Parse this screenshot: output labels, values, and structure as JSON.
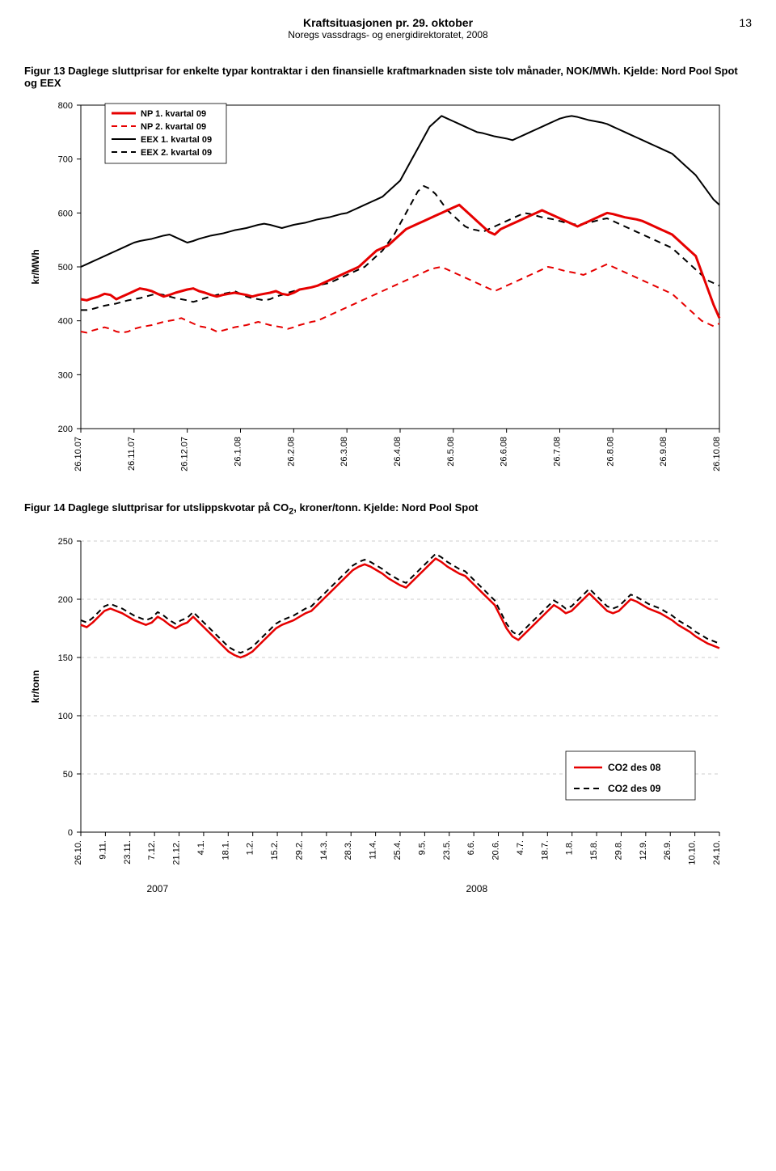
{
  "header": {
    "title": "Kraftsituasjonen pr. 29. oktober",
    "subtitle": "Noregs vassdrags- og energidirektoratet, 2008",
    "page_number": "13"
  },
  "figure13": {
    "caption": "Figur 13 Daglege sluttprisar for enkelte typar kontraktar i den finansielle kraftmarknaden siste tolv månader, NOK/MWh. Kjelde: Nord Pool Spot og EEX",
    "type": "line",
    "ylabel": "kr/MWh",
    "ylim": [
      200,
      800
    ],
    "ytick_step": 100,
    "x_labels": [
      "26.10.07",
      "26.11.07",
      "26.12.07",
      "26.1.08",
      "26.2.08",
      "26.3.08",
      "26.4.08",
      "26.5.08",
      "26.6.08",
      "26.7.08",
      "26.8.08",
      "26.9.08",
      "26.10.08"
    ],
    "legend": {
      "items": [
        {
          "label": "NP 1. kvartal 09",
          "color": "#e60000",
          "dash": false,
          "width": 3
        },
        {
          "label": "NP 2. kvartal 09",
          "color": "#e60000",
          "dash": true,
          "width": 2
        },
        {
          "label": "EEX 1. kvartal 09",
          "color": "#000000",
          "dash": false,
          "width": 2
        },
        {
          "label": "EEX 2. kvartal 09",
          "color": "#000000",
          "dash": true,
          "width": 2
        }
      ]
    },
    "series": {
      "np1": {
        "color": "#e60000",
        "dash": false,
        "width": 3.2,
        "y": [
          440,
          438,
          442,
          445,
          450,
          448,
          440,
          445,
          450,
          455,
          460,
          458,
          455,
          450,
          445,
          448,
          452,
          455,
          458,
          460,
          455,
          452,
          448,
          445,
          448,
          450,
          452,
          450,
          448,
          445,
          448,
          450,
          452,
          455,
          450,
          448,
          452,
          458,
          460,
          462,
          465,
          470,
          475,
          480,
          485,
          490,
          495,
          500,
          510,
          520,
          530,
          535,
          540,
          550,
          560,
          570,
          575,
          580,
          585,
          590,
          595,
          600,
          605,
          610,
          615,
          605,
          595,
          585,
          575,
          565,
          560,
          570,
          575,
          580,
          585,
          590,
          595,
          600,
          605,
          600,
          595,
          590,
          585,
          580,
          575,
          580,
          585,
          590,
          595,
          600,
          598,
          595,
          592,
          590,
          588,
          585,
          580,
          575,
          570,
          565,
          560,
          550,
          540,
          530,
          520,
          490,
          460,
          430,
          405
        ]
      },
      "np2": {
        "color": "#e60000",
        "dash": true,
        "width": 2,
        "y": [
          380,
          378,
          382,
          385,
          388,
          385,
          380,
          378,
          380,
          385,
          388,
          390,
          392,
          395,
          398,
          400,
          402,
          405,
          400,
          395,
          390,
          388,
          385,
          380,
          382,
          385,
          388,
          390,
          392,
          395,
          398,
          395,
          392,
          390,
          388,
          385,
          388,
          392,
          395,
          398,
          400,
          405,
          410,
          415,
          420,
          425,
          430,
          435,
          440,
          445,
          450,
          455,
          460,
          465,
          470,
          475,
          480,
          485,
          490,
          495,
          498,
          500,
          495,
          490,
          485,
          480,
          475,
          470,
          465,
          460,
          455,
          460,
          465,
          470,
          475,
          480,
          485,
          490,
          495,
          500,
          498,
          495,
          492,
          490,
          488,
          485,
          490,
          495,
          500,
          505,
          500,
          495,
          490,
          485,
          480,
          475,
          470,
          465,
          460,
          455,
          450,
          440,
          430,
          420,
          410,
          400,
          395,
          390,
          395
        ]
      },
      "eex1": {
        "color": "#000000",
        "dash": false,
        "width": 2,
        "y": [
          500,
          505,
          510,
          515,
          520,
          525,
          530,
          535,
          540,
          545,
          548,
          550,
          552,
          555,
          558,
          560,
          555,
          550,
          545,
          548,
          552,
          555,
          558,
          560,
          562,
          565,
          568,
          570,
          572,
          575,
          578,
          580,
          578,
          575,
          572,
          575,
          578,
          580,
          582,
          585,
          588,
          590,
          592,
          595,
          598,
          600,
          605,
          610,
          615,
          620,
          625,
          630,
          640,
          650,
          660,
          680,
          700,
          720,
          740,
          760,
          770,
          780,
          775,
          770,
          765,
          760,
          755,
          750,
          748,
          745,
          742,
          740,
          738,
          735,
          740,
          745,
          750,
          755,
          760,
          765,
          770,
          775,
          778,
          780,
          778,
          775,
          772,
          770,
          768,
          765,
          760,
          755,
          750,
          745,
          740,
          735,
          730,
          725,
          720,
          715,
          710,
          700,
          690,
          680,
          670,
          655,
          640,
          625,
          615
        ]
      },
      "eex2": {
        "color": "#000000",
        "dash": true,
        "width": 2,
        "y": [
          420,
          420,
          422,
          425,
          428,
          430,
          432,
          435,
          438,
          440,
          442,
          445,
          448,
          450,
          448,
          445,
          442,
          440,
          438,
          435,
          438,
          442,
          445,
          448,
          450,
          452,
          455,
          450,
          445,
          442,
          440,
          438,
          440,
          445,
          448,
          452,
          455,
          458,
          460,
          462,
          465,
          468,
          470,
          475,
          480,
          485,
          490,
          495,
          500,
          510,
          520,
          530,
          545,
          560,
          580,
          600,
          620,
          640,
          650,
          645,
          635,
          620,
          605,
          595,
          585,
          575,
          570,
          568,
          565,
          570,
          575,
          580,
          585,
          590,
          595,
          600,
          598,
          595,
          592,
          590,
          588,
          585,
          582,
          580,
          578,
          580,
          582,
          585,
          588,
          590,
          585,
          580,
          575,
          570,
          565,
          560,
          555,
          550,
          545,
          540,
          535,
          525,
          515,
          505,
          495,
          485,
          475,
          470,
          465
        ]
      }
    },
    "background_color": "#ffffff",
    "axis_color": "#000000"
  },
  "figure14": {
    "caption_prefix": "Figur 14 Daglege sluttprisar for utslippskvotar på CO",
    "caption_sub": "2",
    "caption_suffix": ", kroner/tonn. Kjelde: Nord Pool Spot",
    "type": "line",
    "ylabel": "kr/tonn",
    "ylim": [
      0,
      250
    ],
    "ytick_step": 50,
    "x_labels": [
      "26.10.",
      "9.11.",
      "23.11.",
      "7.12.",
      "21.12.",
      "4.1.",
      "18.1.",
      "1.2.",
      "15.2.",
      "29.2.",
      "14.3.",
      "28.3.",
      "11.4.",
      "25.4.",
      "9.5.",
      "23.5.",
      "6.6.",
      "20.6.",
      "4.7.",
      "18.7.",
      "1.8.",
      "15.8.",
      "29.8.",
      "12.9.",
      "26.9.",
      "10.10.",
      "24.10."
    ],
    "year_labels": {
      "y2007": "2007",
      "y2008": "2008"
    },
    "legend": {
      "items": [
        {
          "label": "CO2 des 08",
          "color": "#e60000",
          "dash": false,
          "width": 2.5
        },
        {
          "label": "CO2 des 09",
          "color": "#000000",
          "dash": true,
          "width": 2
        }
      ]
    },
    "series": {
      "co2_08": {
        "color": "#e60000",
        "dash": false,
        "width": 2.5,
        "y": [
          178,
          176,
          180,
          185,
          190,
          192,
          190,
          188,
          185,
          182,
          180,
          178,
          180,
          185,
          182,
          178,
          175,
          178,
          180,
          185,
          180,
          175,
          170,
          165,
          160,
          155,
          152,
          150,
          152,
          155,
          160,
          165,
          170,
          175,
          178,
          180,
          182,
          185,
          188,
          190,
          195,
          200,
          205,
          210,
          215,
          220,
          225,
          228,
          230,
          228,
          225,
          222,
          218,
          215,
          212,
          210,
          215,
          220,
          225,
          230,
          235,
          232,
          228,
          225,
          222,
          220,
          215,
          210,
          205,
          200,
          195,
          185,
          175,
          168,
          165,
          170,
          175,
          180,
          185,
          190,
          195,
          192,
          188,
          190,
          195,
          200,
          205,
          200,
          195,
          190,
          188,
          190,
          195,
          200,
          198,
          195,
          192,
          190,
          188,
          185,
          182,
          178,
          175,
          172,
          168,
          165,
          162,
          160,
          158
        ]
      },
      "co2_09": {
        "color": "#000000",
        "dash": true,
        "width": 2,
        "y": [
          182,
          180,
          184,
          189,
          194,
          196,
          194,
          192,
          189,
          186,
          184,
          182,
          184,
          189,
          186,
          182,
          179,
          182,
          184,
          189,
          184,
          179,
          174,
          169,
          164,
          159,
          156,
          154,
          156,
          159,
          164,
          169,
          174,
          179,
          182,
          184,
          186,
          189,
          192,
          194,
          199,
          204,
          209,
          214,
          219,
          224,
          229,
          232,
          234,
          232,
          229,
          226,
          222,
          219,
          216,
          214,
          219,
          224,
          229,
          234,
          239,
          236,
          232,
          229,
          226,
          224,
          219,
          214,
          209,
          204,
          199,
          189,
          179,
          172,
          169,
          174,
          179,
          184,
          189,
          194,
          199,
          196,
          192,
          194,
          199,
          204,
          209,
          204,
          199,
          194,
          192,
          194,
          199,
          204,
          202,
          199,
          196,
          194,
          192,
          189,
          186,
          182,
          179,
          176,
          172,
          169,
          166,
          164,
          162
        ]
      }
    },
    "grid_color": "#cccccc",
    "background_color": "#ffffff",
    "axis_color": "#000000"
  }
}
